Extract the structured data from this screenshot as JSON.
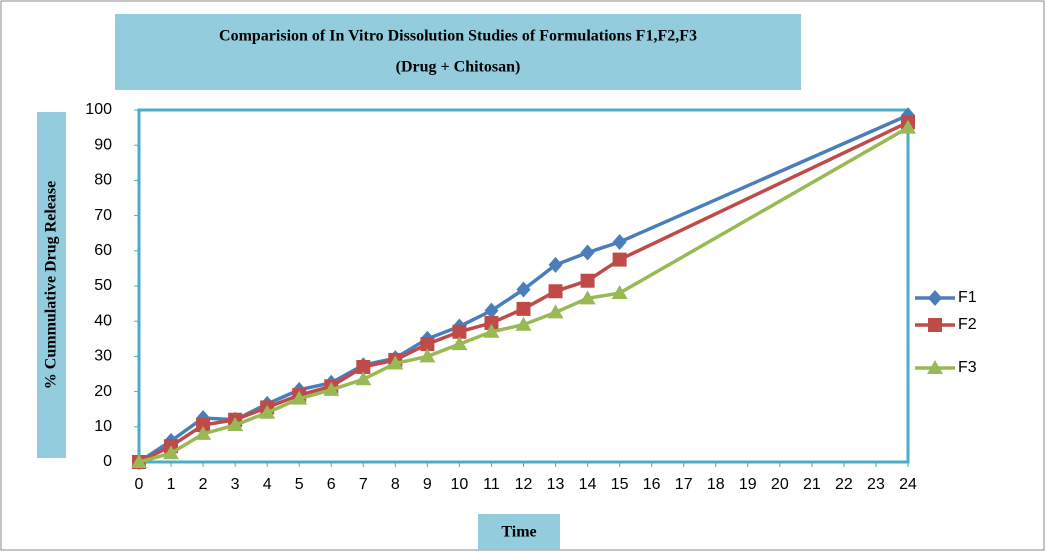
{
  "chart_data": {
    "type": "line",
    "title": [
      "Comparision of In Vitro Dissolution Studies of Formulations F1,F2,F3",
      "(Drug + Chitosan)"
    ],
    "xlabel": "Time",
    "ylabel": "% Cummulative Drug Release",
    "x": [
      0,
      1,
      2,
      3,
      4,
      5,
      6,
      7,
      8,
      9,
      10,
      11,
      12,
      13,
      14,
      15,
      24
    ],
    "series": [
      {
        "name": "F1",
        "color": "#4a7ebb",
        "marker": "diamond",
        "values": [
          0,
          6,
          12.5,
          12,
          16.5,
          20.5,
          22.5,
          27.5,
          29.5,
          35,
          38.5,
          43,
          49,
          56,
          59.5,
          62.5,
          98.5
        ]
      },
      {
        "name": "F2",
        "color": "#be4b48",
        "marker": "square",
        "values": [
          0,
          4.5,
          10.5,
          12,
          15.5,
          19,
          21.5,
          27,
          29,
          33.5,
          37,
          39.5,
          43.5,
          48.5,
          51.5,
          57.5,
          96.5
        ]
      },
      {
        "name": "F3",
        "color": "#98b954",
        "marker": "triangle",
        "values": [
          0,
          2.5,
          8,
          10.5,
          14,
          18,
          20.5,
          23.5,
          28,
          30,
          33.5,
          37,
          39,
          42.5,
          46.5,
          48,
          95
        ]
      }
    ],
    "xlim": [
      0,
      24
    ],
    "xticks": [
      0,
      1,
      2,
      3,
      4,
      5,
      6,
      7,
      8,
      9,
      10,
      11,
      12,
      13,
      14,
      15,
      16,
      17,
      18,
      19,
      20,
      21,
      22,
      23,
      24
    ],
    "ylim": [
      0,
      100
    ],
    "yticks": [
      0,
      10,
      20,
      30,
      40,
      50,
      60,
      70,
      80,
      90,
      100
    ],
    "grid": false,
    "legend": "right"
  }
}
